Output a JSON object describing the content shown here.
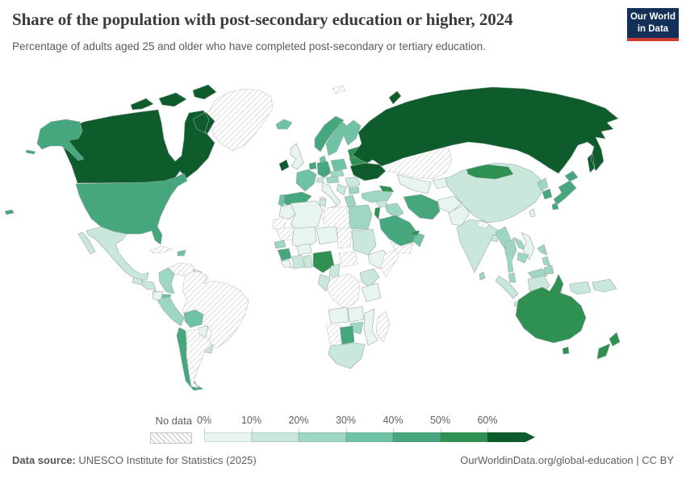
{
  "header": {
    "title": "Share of the population with post-secondary education or higher, 2024",
    "subtitle": "Percentage of adults aged 25 and older who have completed post-secondary or tertiary education.",
    "logo": {
      "line1": "Our World",
      "line2": "in Data"
    }
  },
  "colors": {
    "logo_bg": "#143059",
    "logo_accent": "#cf3a31",
    "border_default": "#9aa79f",
    "border_nodata": "#c5c5c5",
    "hatch_line": "#d0d0d0"
  },
  "legend": {
    "no_data_label": "No data",
    "tick_labels": [
      "0%",
      "10%",
      "20%",
      "30%",
      "40%",
      "50%",
      "60%"
    ]
  },
  "footer": {
    "source_label": "Data source:",
    "source_text": "UNESCO Institute for Statistics (2025)",
    "link_text": "OurWorldinData.org/global-education | CC BY"
  },
  "chart_data": {
    "type": "heatmap",
    "subtype": "choropleth_world_map",
    "title": "Share of the population with post-secondary education or higher, 2024",
    "unit": "% of adults aged 25 and older",
    "legend_position": "bottom",
    "bin_ranges": {
      "0": "No data",
      "1": "0-10%",
      "2": "10-20%",
      "3": "20-30%",
      "4": "30-40%",
      "5": "40-50%",
      "6": "50-60%",
      "7": "60%+"
    },
    "legend_bins": [
      {
        "label": "No data",
        "style": "hatched",
        "color": "#ffffff"
      },
      {
        "label": "0-10%",
        "color": "#e7f4ef"
      },
      {
        "label": "10-20%",
        "color": "#c9e8db"
      },
      {
        "label": "20-30%",
        "color": "#9dd7c2"
      },
      {
        "label": "30-40%",
        "color": "#6fc2a4"
      },
      {
        "label": "40-50%",
        "color": "#46a77e"
      },
      {
        "label": "50-60%",
        "color": "#2e9152"
      },
      {
        "label": "60%+",
        "color": "#0e5c2c"
      }
    ],
    "regions": [
      {
        "id": "greenland",
        "name": "Greenland",
        "bin": 0
      },
      {
        "id": "canada",
        "name": "Canada",
        "bin": 7
      },
      {
        "id": "usa",
        "name": "United States",
        "bin": 5
      },
      {
        "id": "mexico",
        "name": "Mexico",
        "bin": 2
      },
      {
        "id": "guatemala",
        "name": "Guatemala",
        "bin": 2
      },
      {
        "id": "honduras_nicaragua",
        "name": "Honduras & Nicaragua",
        "bin": 2
      },
      {
        "id": "costa_rica",
        "name": "Costa Rica",
        "bin": 3
      },
      {
        "id": "panama",
        "name": "Panama",
        "bin": 4
      },
      {
        "id": "cuba",
        "name": "Cuba",
        "bin": 0
      },
      {
        "id": "hispaniola",
        "name": "Dominican Republic",
        "bin": 4
      },
      {
        "id": "colombia",
        "name": "Colombia",
        "bin": 3
      },
      {
        "id": "venezuela",
        "name": "Venezuela",
        "bin": 0
      },
      {
        "id": "guyana",
        "name": "Guyana",
        "bin": 2
      },
      {
        "id": "suriname",
        "name": "Suriname",
        "bin": 0
      },
      {
        "id": "ecuador",
        "name": "Ecuador",
        "bin": 1
      },
      {
        "id": "peru",
        "name": "Peru",
        "bin": 3
      },
      {
        "id": "brazil",
        "name": "Brazil",
        "bin": 0
      },
      {
        "id": "bolivia",
        "name": "Bolivia",
        "bin": 4
      },
      {
        "id": "paraguay",
        "name": "Paraguay",
        "bin": 1
      },
      {
        "id": "uruguay",
        "name": "Uruguay",
        "bin": 2
      },
      {
        "id": "chile",
        "name": "Chile",
        "bin": 5
      },
      {
        "id": "argentina",
        "name": "Argentina",
        "bin": 0
      },
      {
        "id": "iceland",
        "name": "Iceland",
        "bin": 4
      },
      {
        "id": "ireland",
        "name": "Ireland",
        "bin": 7
      },
      {
        "id": "united_kingdom",
        "name": "United Kingdom",
        "bin": 1
      },
      {
        "id": "norway",
        "name": "Norway",
        "bin": 5
      },
      {
        "id": "sweden",
        "name": "Sweden",
        "bin": 4
      },
      {
        "id": "finland",
        "name": "Finland",
        "bin": 4
      },
      {
        "id": "denmark",
        "name": "Denmark",
        "bin": 4
      },
      {
        "id": "baltics",
        "name": "Baltic states",
        "bin": 6
      },
      {
        "id": "benelux",
        "name": "Netherlands & Belgium",
        "bin": 5
      },
      {
        "id": "germany",
        "name": "Germany",
        "bin": 5
      },
      {
        "id": "france",
        "name": "France",
        "bin": 4
      },
      {
        "id": "spain",
        "name": "Spain",
        "bin": 5
      },
      {
        "id": "portugal",
        "name": "Portugal",
        "bin": 4
      },
      {
        "id": "italy",
        "name": "Italy",
        "bin": 1
      },
      {
        "id": "switzerland",
        "name": "Switzerland",
        "bin": 2
      },
      {
        "id": "austria_hungary",
        "name": "Austria & Hungary",
        "bin": 3
      },
      {
        "id": "poland",
        "name": "Poland",
        "bin": 4
      },
      {
        "id": "czech_slovakia",
        "name": "Czechia & Slovakia",
        "bin": 3
      },
      {
        "id": "romania",
        "name": "Romania",
        "bin": 2
      },
      {
        "id": "serbia_balkans",
        "name": "Western Balkans",
        "bin": 2
      },
      {
        "id": "bulgaria",
        "name": "Bulgaria",
        "bin": 3
      },
      {
        "id": "greece",
        "name": "Greece",
        "bin": 3
      },
      {
        "id": "ukraine",
        "name": "Ukraine",
        "bin": 7
      },
      {
        "id": "belarus",
        "name": "Belarus",
        "bin": 6
      },
      {
        "id": "russia",
        "name": "Russia",
        "bin": 7
      },
      {
        "id": "svalbard",
        "name": "Svalbard",
        "bin": 0
      },
      {
        "id": "turkey",
        "name": "Turkey",
        "bin": 3
      },
      {
        "id": "caucasus",
        "name": "Caucasus",
        "bin": 6
      },
      {
        "id": "kazakhstan",
        "name": "Kazakhstan",
        "bin": 0
      },
      {
        "id": "uzbekistan_turkmenistan",
        "name": "Uzbekistan & Turkmenistan",
        "bin": 1
      },
      {
        "id": "kyrgyzstan_tajikistan",
        "name": "Kyrgyzstan & Tajikistan",
        "bin": 1
      },
      {
        "id": "syria",
        "name": "Syria",
        "bin": 2
      },
      {
        "id": "iraq",
        "name": "Iraq",
        "bin": 3
      },
      {
        "id": "israel_jordan",
        "name": "Israel & Jordan",
        "bin": 6
      },
      {
        "id": "saudi_arabia",
        "name": "Saudi Arabia",
        "bin": 5
      },
      {
        "id": "yemen",
        "name": "Yemen",
        "bin": 0
      },
      {
        "id": "oman",
        "name": "Oman",
        "bin": 4
      },
      {
        "id": "uae",
        "name": "United Arab Emirates",
        "bin": 6
      },
      {
        "id": "iran",
        "name": "Iran",
        "bin": 5
      },
      {
        "id": "afghanistan",
        "name": "Afghanistan",
        "bin": 1
      },
      {
        "id": "pakistan",
        "name": "Pakistan",
        "bin": 1
      },
      {
        "id": "india",
        "name": "India",
        "bin": 2
      },
      {
        "id": "nepal",
        "name": "Nepal",
        "bin": 0
      },
      {
        "id": "bangladesh",
        "name": "Bangladesh",
        "bin": 2
      },
      {
        "id": "sri_lanka",
        "name": "Sri Lanka",
        "bin": 3
      },
      {
        "id": "china",
        "name": "China",
        "bin": 2
      },
      {
        "id": "mongolia",
        "name": "Mongolia",
        "bin": 6
      },
      {
        "id": "taiwan",
        "name": "Taiwan",
        "bin": 1
      },
      {
        "id": "north_korea",
        "name": "North Korea",
        "bin": 3
      },
      {
        "id": "south_korea",
        "name": "South Korea",
        "bin": 5
      },
      {
        "id": "japan",
        "name": "Japan",
        "bin": 5
      },
      {
        "id": "myanmar",
        "name": "Myanmar",
        "bin": 3
      },
      {
        "id": "thailand",
        "name": "Thailand",
        "bin": 3
      },
      {
        "id": "laos",
        "name": "Laos",
        "bin": 3
      },
      {
        "id": "vietnam",
        "name": "Vietnam",
        "bin": 1
      },
      {
        "id": "cambodia",
        "name": "Cambodia",
        "bin": 3
      },
      {
        "id": "malaysia",
        "name": "Malaysia",
        "bin": 3
      },
      {
        "id": "indonesia",
        "name": "Indonesia",
        "bin": 2
      },
      {
        "id": "philippines",
        "name": "Philippines",
        "bin": 3
      },
      {
        "id": "papua_new_guinea",
        "name": "Papua New Guinea",
        "bin": 2
      },
      {
        "id": "morocco",
        "name": "Morocco",
        "bin": 1
      },
      {
        "id": "western_sahara",
        "name": "Western Sahara",
        "bin": 0
      },
      {
        "id": "algeria",
        "name": "Algeria",
        "bin": 1
      },
      {
        "id": "tunisia",
        "name": "Tunisia",
        "bin": 2
      },
      {
        "id": "libya",
        "name": "Libya",
        "bin": 0
      },
      {
        "id": "egypt",
        "name": "Egypt",
        "bin": 3
      },
      {
        "id": "mauritania",
        "name": "Mauritania",
        "bin": 0
      },
      {
        "id": "mali",
        "name": "Mali",
        "bin": 1
      },
      {
        "id": "niger",
        "name": "Niger",
        "bin": 1
      },
      {
        "id": "chad",
        "name": "Chad",
        "bin": 0
      },
      {
        "id": "sudan",
        "name": "Sudan",
        "bin": 2
      },
      {
        "id": "ethiopia",
        "name": "Ethiopia",
        "bin": 1
      },
      {
        "id": "somalia",
        "name": "Somalia",
        "bin": 0
      },
      {
        "id": "senegal",
        "name": "Senegal",
        "bin": 3
      },
      {
        "id": "guinea",
        "name": "Guinea",
        "bin": 5
      },
      {
        "id": "sierra_leone_liberia",
        "name": "Sierra Leone & Liberia",
        "bin": 1
      },
      {
        "id": "cote_divoire",
        "name": "Cote d'Ivoire",
        "bin": 2
      },
      {
        "id": "ghana",
        "name": "Ghana",
        "bin": 2
      },
      {
        "id": "burkina_faso",
        "name": "Burkina Faso",
        "bin": 1
      },
      {
        "id": "nigeria",
        "name": "Nigeria",
        "bin": 6
      },
      {
        "id": "cameroon",
        "name": "Cameroon",
        "bin": 2
      },
      {
        "id": "central_african_republic",
        "name": "Central African Republic",
        "bin": 0
      },
      {
        "id": "drc",
        "name": "Democratic Republic of Congo",
        "bin": 0
      },
      {
        "id": "gabon_congo",
        "name": "Gabon & Congo",
        "bin": 2
      },
      {
        "id": "kenya",
        "name": "Kenya",
        "bin": 2
      },
      {
        "id": "tanzania",
        "name": "Tanzania",
        "bin": 1
      },
      {
        "id": "angola",
        "name": "Angola",
        "bin": 1
      },
      {
        "id": "zambia",
        "name": "Zambia",
        "bin": 1
      },
      {
        "id": "mozambique",
        "name": "Mozambique",
        "bin": 1
      },
      {
        "id": "zimbabwe",
        "name": "Zimbabwe",
        "bin": 3
      },
      {
        "id": "botswana",
        "name": "Botswana",
        "bin": 5
      },
      {
        "id": "namibia",
        "name": "Namibia",
        "bin": 0
      },
      {
        "id": "south_africa",
        "name": "South Africa",
        "bin": 2
      },
      {
        "id": "madagascar",
        "name": "Madagascar",
        "bin": 0
      },
      {
        "id": "australia",
        "name": "Australia",
        "bin": 6
      },
      {
        "id": "new_zealand",
        "name": "New Zealand",
        "bin": 6
      }
    ]
  }
}
